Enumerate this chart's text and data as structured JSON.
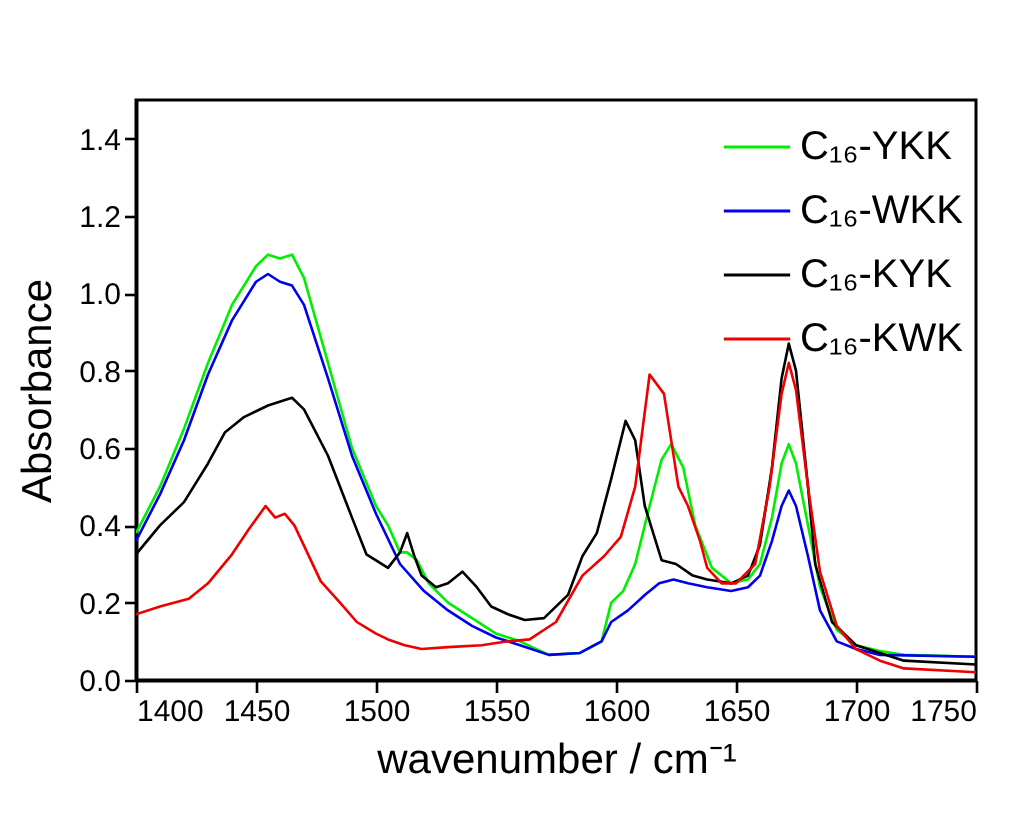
{
  "chart_data": {
    "type": "line",
    "xlabel": "wavenumber / cm⁻¹",
    "ylabel": "Absorbance",
    "xlim": [
      1400,
      1750
    ],
    "xticks": [
      1400,
      1450,
      1500,
      1550,
      1600,
      1650,
      1700,
      1750
    ],
    "ylim": [
      0,
      1.5
    ],
    "yticks": [
      {
        "value": 0,
        "label": "0.0"
      },
      0.2,
      0.4,
      0.6,
      0.8,
      {
        "value": 1,
        "label": "1.0"
      },
      1.2,
      1.4
    ],
    "legend": "top right",
    "grid": false,
    "series": [
      {
        "name": "C₁₆-YKK",
        "color": "#00ee00",
        "x": [
          1400,
          1410,
          1420,
          1430,
          1440,
          1450,
          1455,
          1460,
          1465,
          1470,
          1480,
          1490,
          1500,
          1505,
          1510,
          1513,
          1517,
          1522,
          1530,
          1540,
          1550,
          1560,
          1572,
          1585,
          1594,
          1598,
          1603,
          1608,
          1614,
          1619,
          1623,
          1628,
          1633,
          1640,
          1648,
          1655,
          1660,
          1665,
          1669,
          1672,
          1675,
          1680,
          1685,
          1692,
          1700,
          1710,
          1720,
          1750
        ],
        "values": [
          0.38,
          0.5,
          0.65,
          0.82,
          0.97,
          1.07,
          1.1,
          1.09,
          1.1,
          1.04,
          0.82,
          0.6,
          0.45,
          0.4,
          0.33,
          0.33,
          0.31,
          0.25,
          0.2,
          0.16,
          0.12,
          0.1,
          0.065,
          0.07,
          0.1,
          0.2,
          0.23,
          0.3,
          0.45,
          0.57,
          0.61,
          0.55,
          0.4,
          0.29,
          0.25,
          0.26,
          0.3,
          0.42,
          0.56,
          0.61,
          0.56,
          0.4,
          0.24,
          0.13,
          0.09,
          0.075,
          0.065,
          0.06
        ]
      },
      {
        "name": "C₁₆-WKK",
        "color": "#0000ee",
        "x": [
          1400,
          1410,
          1420,
          1430,
          1440,
          1450,
          1455,
          1460,
          1465,
          1470,
          1480,
          1490,
          1500,
          1510,
          1520,
          1530,
          1540,
          1550,
          1560,
          1572,
          1585,
          1594,
          1598,
          1605,
          1612,
          1618,
          1624,
          1630,
          1638,
          1648,
          1655,
          1660,
          1665,
          1669,
          1672,
          1675,
          1680,
          1685,
          1692,
          1700,
          1710,
          1750
        ],
        "values": [
          0.36,
          0.48,
          0.62,
          0.79,
          0.93,
          1.03,
          1.05,
          1.03,
          1.02,
          0.97,
          0.78,
          0.58,
          0.43,
          0.3,
          0.23,
          0.18,
          0.14,
          0.11,
          0.09,
          0.065,
          0.07,
          0.1,
          0.15,
          0.18,
          0.22,
          0.25,
          0.26,
          0.25,
          0.24,
          0.23,
          0.24,
          0.27,
          0.36,
          0.45,
          0.49,
          0.45,
          0.32,
          0.18,
          0.1,
          0.08,
          0.065,
          0.06
        ]
      },
      {
        "name": "C₁₆-KYK",
        "color": "#000000",
        "x": [
          1400,
          1410,
          1420,
          1430,
          1437,
          1445,
          1455,
          1465,
          1470,
          1480,
          1490,
          1496,
          1505,
          1510,
          1513,
          1516,
          1519,
          1525,
          1530,
          1536,
          1542,
          1548,
          1555,
          1562,
          1570,
          1580,
          1586,
          1592,
          1598,
          1604,
          1608,
          1612,
          1619,
          1625,
          1632,
          1638,
          1648,
          1655,
          1660,
          1665,
          1669,
          1672,
          1675,
          1680,
          1683,
          1690,
          1700,
          1710,
          1720,
          1750
        ],
        "values": [
          0.325,
          0.4,
          0.46,
          0.56,
          0.64,
          0.68,
          0.71,
          0.73,
          0.7,
          0.58,
          0.42,
          0.325,
          0.29,
          0.33,
          0.38,
          0.32,
          0.27,
          0.24,
          0.25,
          0.28,
          0.24,
          0.19,
          0.17,
          0.155,
          0.16,
          0.22,
          0.32,
          0.38,
          0.52,
          0.67,
          0.62,
          0.45,
          0.31,
          0.3,
          0.27,
          0.26,
          0.25,
          0.27,
          0.35,
          0.55,
          0.78,
          0.87,
          0.8,
          0.5,
          0.3,
          0.15,
          0.09,
          0.07,
          0.05,
          0.04
        ]
      },
      {
        "name": "C₁₆-KWK",
        "color": "#ee0000",
        "x": [
          1400,
          1410,
          1422,
          1430,
          1440,
          1447,
          1454,
          1458,
          1462,
          1466,
          1477,
          1485,
          1492,
          1500,
          1505,
          1512,
          1519,
          1530,
          1544,
          1555,
          1564,
          1575,
          1586,
          1595,
          1602,
          1608,
          1614,
          1620,
          1626,
          1630,
          1635,
          1638,
          1644,
          1650,
          1658,
          1664,
          1669,
          1672,
          1675,
          1680,
          1685,
          1692,
          1700,
          1710,
          1720,
          1750
        ],
        "values": [
          0.17,
          0.19,
          0.21,
          0.25,
          0.325,
          0.39,
          0.45,
          0.42,
          0.43,
          0.4,
          0.255,
          0.2,
          0.15,
          0.12,
          0.105,
          0.09,
          0.08,
          0.085,
          0.09,
          0.1,
          0.105,
          0.15,
          0.27,
          0.32,
          0.37,
          0.5,
          0.79,
          0.74,
          0.5,
          0.45,
          0.36,
          0.29,
          0.25,
          0.25,
          0.3,
          0.5,
          0.74,
          0.82,
          0.75,
          0.5,
          0.28,
          0.14,
          0.08,
          0.05,
          0.03,
          0.02
        ]
      }
    ]
  }
}
